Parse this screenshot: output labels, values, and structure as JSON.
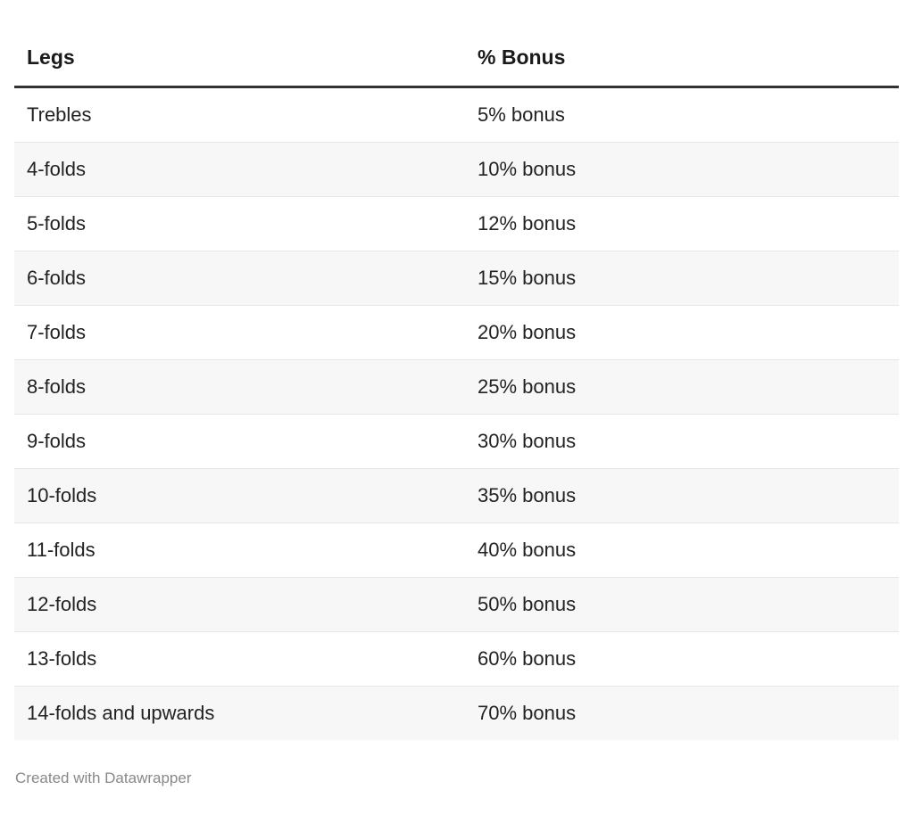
{
  "chart_data": {
    "type": "table",
    "columns": [
      "Legs",
      "% Bonus"
    ],
    "rows": [
      [
        "Trebles",
        "5% bonus"
      ],
      [
        "4-folds",
        "10% bonus"
      ],
      [
        "5-folds",
        "12% bonus"
      ],
      [
        "6-folds",
        "15% bonus"
      ],
      [
        "7-folds",
        "20% bonus"
      ],
      [
        "8-folds",
        "25% bonus"
      ],
      [
        "9-folds",
        "30% bonus"
      ],
      [
        "10-folds",
        "35% bonus"
      ],
      [
        "11-folds",
        "40% bonus"
      ],
      [
        "12-folds",
        "50% bonus"
      ],
      [
        "13-folds",
        "60% bonus"
      ],
      [
        "14-folds and upwards",
        "70% bonus"
      ]
    ]
  },
  "footer": {
    "credit": "Created with Datawrapper"
  }
}
